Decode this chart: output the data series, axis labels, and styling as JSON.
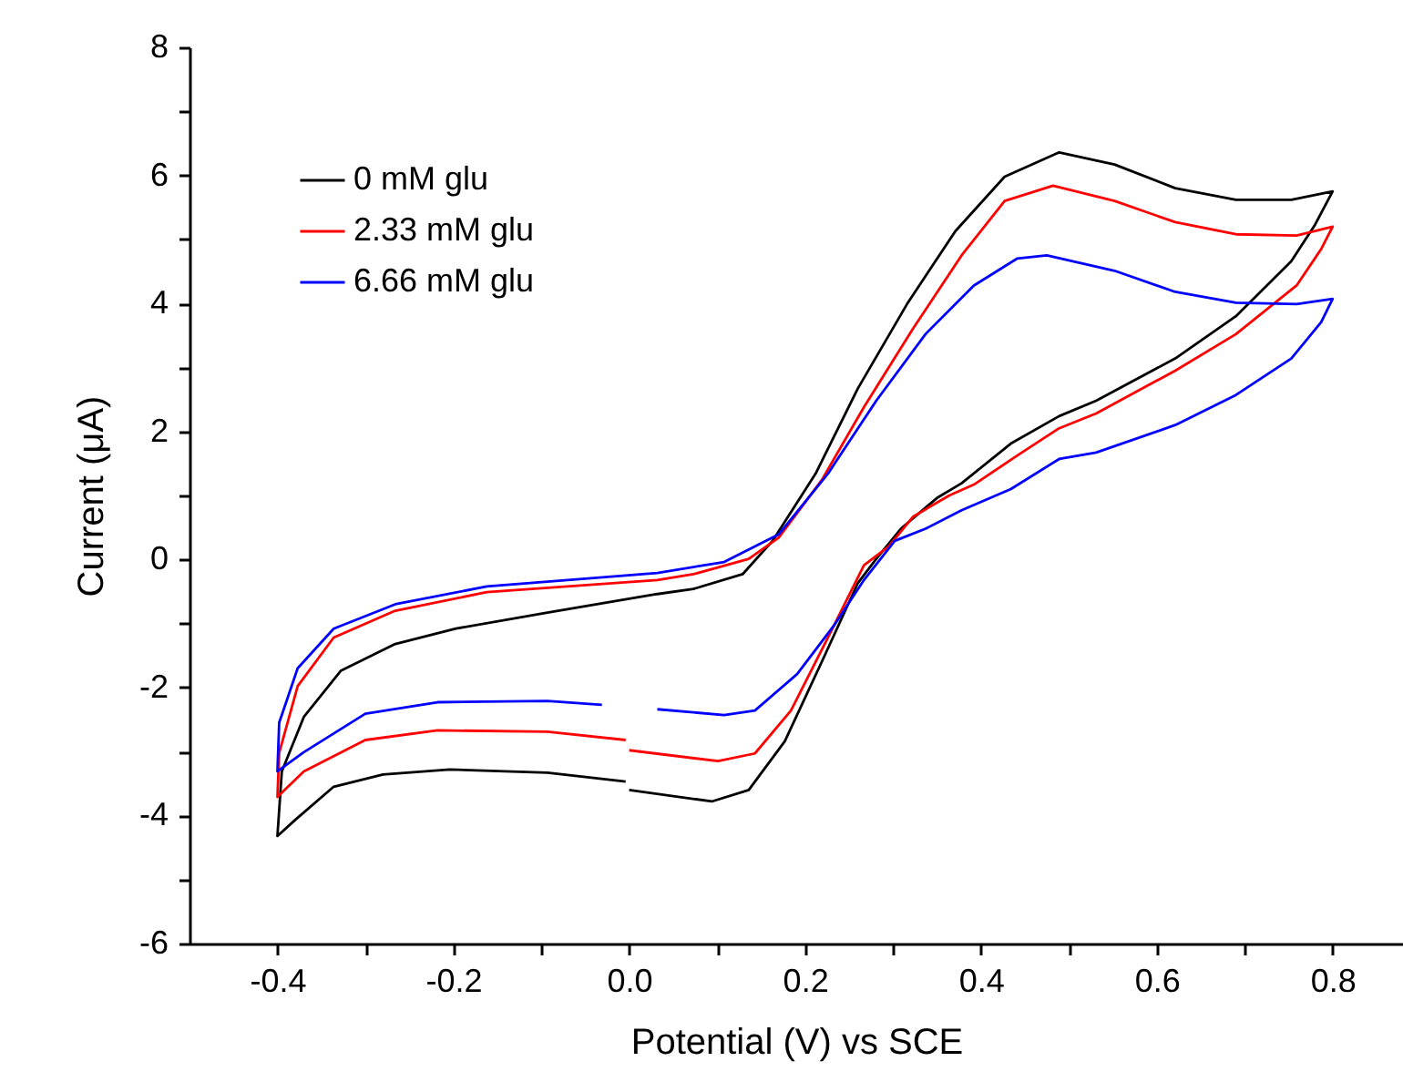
{
  "chart_data": {
    "type": "line",
    "xlabel": "Potential (V) vs SCE",
    "ylabel": "Current (μA)",
    "xlim": [
      -0.5,
      0.88
    ],
    "ylim": [
      -6,
      8
    ],
    "xticks": [
      -0.4,
      {
        "value": -0.3,
        "label": null
      },
      -0.2,
      {
        "value": -0.1,
        "label": null
      },
      {
        "value": 0,
        "label": "0.0"
      },
      {
        "value": 0.1,
        "label": null
      },
      0.2,
      {
        "value": 0.3,
        "label": null
      },
      0.4,
      {
        "value": 0.5,
        "label": null
      },
      0.6,
      {
        "value": 0.7,
        "label": null
      },
      0.8
    ],
    "yticks": [
      -6,
      {
        "value": -5,
        "label": null
      },
      -4,
      {
        "value": -3,
        "label": null
      },
      -2,
      {
        "value": -1,
        "label": null
      },
      0,
      {
        "value": 1,
        "label": null
      },
      2,
      {
        "value": 3,
        "label": null
      },
      4,
      {
        "value": 5,
        "label": null
      },
      6,
      {
        "value": 7,
        "label": null
      },
      8
    ],
    "legend": "top left",
    "grid": false,
    "marker": "none",
    "line_style": "solid",
    "series": [
      {
        "name": "0 mM glu",
        "color": "#000000",
        "x": [
          0.0,
          0.094,
          0.136,
          0.177,
          0.219,
          0.26,
          0.281,
          0.309,
          0.35,
          0.378,
          0.434,
          0.489,
          0.531,
          0.621,
          0.69,
          0.753,
          0.78,
          0.8,
          0.753,
          0.69,
          0.621,
          0.552,
          0.489,
          0.427,
          0.371,
          0.316,
          0.26,
          0.212,
          0.163,
          0.129,
          0.073,
          0.032,
          -0.093,
          -0.197,
          -0.266,
          -0.328,
          -0.37,
          -0.395,
          -0.4,
          -0.38,
          -0.336,
          -0.28,
          -0.204,
          -0.093,
          -0.004
        ],
        "values": [
          -3.6,
          -3.78,
          -3.6,
          -2.84,
          -1.6,
          -0.37,
          0.01,
          0.48,
          0.96,
          1.19,
          1.81,
          2.24,
          2.48,
          3.14,
          3.8,
          4.66,
          5.23,
          5.75,
          5.62,
          5.62,
          5.8,
          6.17,
          6.36,
          5.98,
          5.13,
          3.99,
          2.67,
          1.34,
          0.29,
          -0.23,
          -0.46,
          -0.54,
          -0.83,
          -1.08,
          -1.32,
          -1.74,
          -2.46,
          -3.31,
          -4.32,
          -4.07,
          -3.55,
          -3.36,
          -3.28,
          -3.33,
          -3.47
        ]
      },
      {
        "name": "2.33 mM glu",
        "color": "#ff0000",
        "x": [
          0.0,
          0.101,
          0.143,
          0.184,
          0.226,
          0.267,
          0.295,
          0.323,
          0.364,
          0.392,
          0.441,
          0.489,
          0.531,
          0.621,
          0.69,
          0.759,
          0.787,
          0.8,
          0.759,
          0.69,
          0.621,
          0.552,
          0.482,
          0.427,
          0.378,
          0.323,
          0.267,
          0.219,
          0.17,
          0.136,
          0.073,
          0.032,
          -0.162,
          -0.266,
          -0.336,
          -0.377,
          -0.398,
          -0.4,
          -0.37,
          -0.3,
          -0.218,
          -0.093,
          -0.004
        ],
        "values": [
          -2.98,
          -3.15,
          -3.03,
          -2.36,
          -1.22,
          -0.09,
          0.2,
          0.67,
          1.0,
          1.17,
          1.62,
          2.05,
          2.28,
          2.95,
          3.52,
          4.28,
          4.85,
          5.2,
          5.06,
          5.08,
          5.27,
          5.6,
          5.84,
          5.6,
          4.75,
          3.61,
          2.38,
          1.24,
          0.34,
          0.01,
          -0.23,
          -0.32,
          -0.51,
          -0.8,
          -1.22,
          -1.98,
          -3.02,
          -3.71,
          -3.31,
          -2.82,
          -2.67,
          -2.69,
          -2.82
        ]
      },
      {
        "name": "6.66 mM glu",
        "color": "#0000ff",
        "x": [
          0.032,
          0.108,
          0.143,
          0.191,
          0.233,
          0.267,
          0.302,
          0.337,
          0.378,
          0.434,
          0.489,
          0.531,
          0.621,
          0.69,
          0.753,
          0.787,
          0.8,
          0.759,
          0.69,
          0.621,
          0.552,
          0.475,
          0.441,
          0.392,
          0.337,
          0.281,
          0.226,
          0.17,
          0.108,
          0.032,
          -0.162,
          -0.266,
          -0.336,
          -0.377,
          -0.398,
          -0.4,
          -0.37,
          -0.3,
          -0.218,
          -0.093,
          -0.031
        ],
        "values": [
          -2.34,
          -2.43,
          -2.36,
          -1.79,
          -1.03,
          -0.32,
          0.29,
          0.48,
          0.77,
          1.1,
          1.57,
          1.67,
          2.1,
          2.57,
          3.14,
          3.71,
          4.07,
          3.99,
          4.01,
          4.18,
          4.51,
          4.75,
          4.7,
          4.28,
          3.52,
          2.48,
          1.34,
          0.39,
          -0.04,
          -0.21,
          -0.42,
          -0.7,
          -1.08,
          -1.7,
          -2.55,
          -3.31,
          -3.01,
          -2.41,
          -2.23,
          -2.21,
          -2.27
        ]
      }
    ]
  }
}
